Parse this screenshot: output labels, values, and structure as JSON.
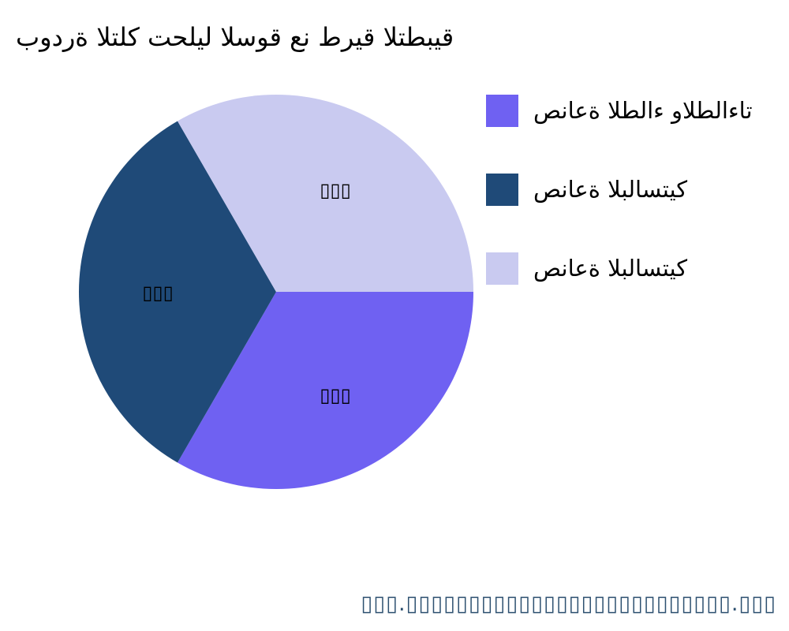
{
  "chart_data": {
    "type": "pie",
    "title": "بودرة التلك تحليل السوق عن طريق التطبيق",
    "slices": [
      {
        "name": "صناعة الطلاء والطلاءات",
        "value": 33.3,
        "label": "▯▯▯",
        "color": "#6f61f2"
      },
      {
        "name": "صناعة البلاستيك",
        "value": 33.3,
        "label": "▯▯▯",
        "color": "#1f4a78"
      },
      {
        "name": "صناعة البلاستيك",
        "value": 33.3,
        "label": "▯▯▯",
        "color": "#c9caf0"
      }
    ],
    "legend_position": "right"
  },
  "footer": "▯▯▯.▯▯▯▯▯▯▯▯▯▯▯▯▯▯▯▯▯▯▯▯▯▯▯▯▯▯.▯▯▯"
}
